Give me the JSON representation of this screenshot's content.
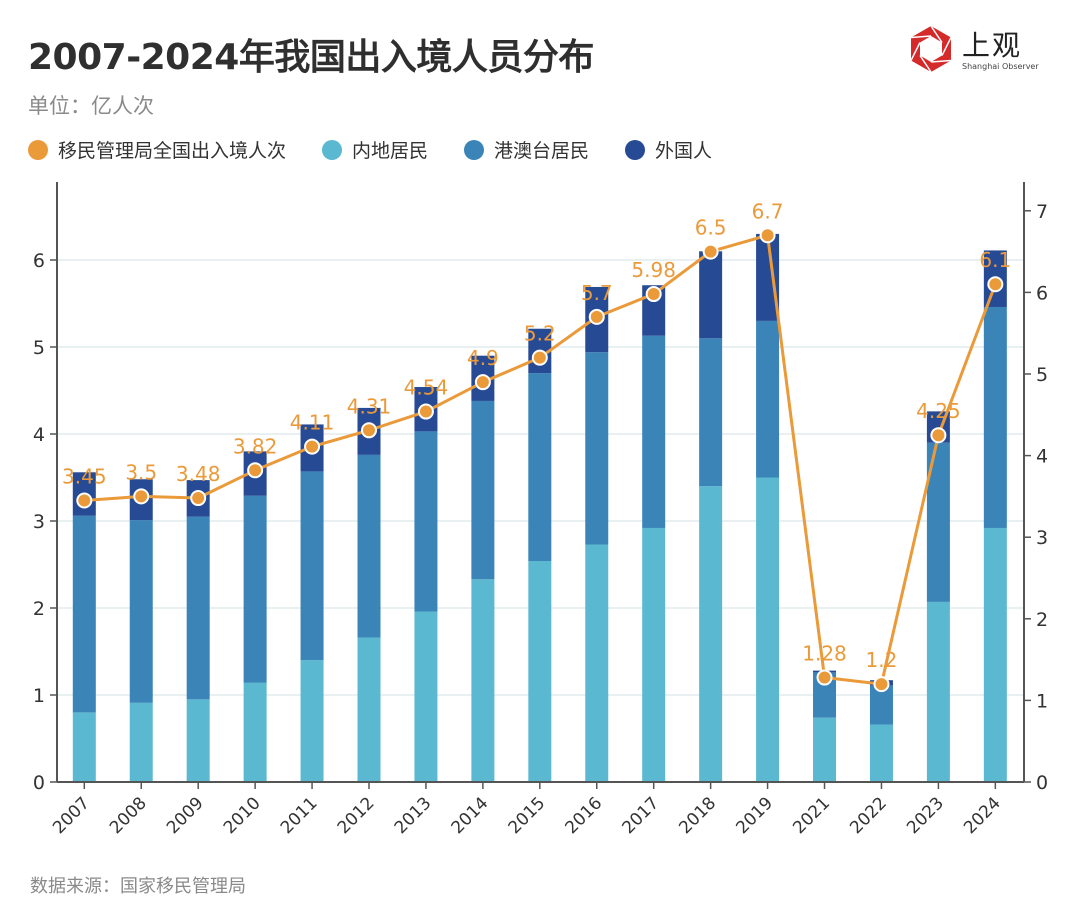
{
  "header": {
    "title": "2007-2024年我国出入境人员分布",
    "unit": "单位：亿人次",
    "logo_text": "上观",
    "logo_subtitle": "Shanghai Observer"
  },
  "legend": [
    {
      "label": "移民管理局全国出入境人次",
      "color": "#EB9A3A"
    },
    {
      "label": "内地居民",
      "color": "#5BB8D1"
    },
    {
      "label": "港澳台居民",
      "color": "#3A84B8"
    },
    {
      "label": "外国人",
      "color": "#274A95"
    }
  ],
  "footer": {
    "source": "数据来源：国家移民管理局"
  },
  "chart_data": {
    "type": "bar",
    "subtype": "stacked bar with line overlay (dual axis)",
    "title": "2007-2024年我国出入境人员分布",
    "ylabel": "亿人次",
    "categories": [
      "2007",
      "2008",
      "2009",
      "2010",
      "2011",
      "2012",
      "2013",
      "2014",
      "2015",
      "2016",
      "2017",
      "2018",
      "2019",
      "2021",
      "2022",
      "2023",
      "2024"
    ],
    "series": [
      {
        "name": "内地居民",
        "type": "bar",
        "axis": "left",
        "color": "#5BB8D1",
        "values": [
          0.8,
          0.91,
          0.95,
          1.14,
          1.4,
          1.66,
          1.96,
          2.33,
          2.54,
          2.73,
          2.92,
          3.4,
          3.5,
          0.74,
          0.66,
          2.07,
          2.92
        ]
      },
      {
        "name": "港澳台居民",
        "type": "bar",
        "axis": "left",
        "color": "#3A84B8",
        "values": [
          2.26,
          2.1,
          2.1,
          2.15,
          2.17,
          2.1,
          2.07,
          2.05,
          2.16,
          2.21,
          2.21,
          1.7,
          1.8,
          0.52,
          0.45,
          1.83,
          2.54
        ]
      },
      {
        "name": "外国人",
        "type": "bar",
        "axis": "left",
        "color": "#274A95",
        "values": [
          0.5,
          0.47,
          0.42,
          0.51,
          0.54,
          0.54,
          0.51,
          0.52,
          0.51,
          0.75,
          0.58,
          1.0,
          1.0,
          0.02,
          0.06,
          0.36,
          0.65
        ]
      },
      {
        "name": "移民管理局全国出入境人次",
        "type": "line",
        "axis": "right",
        "color": "#EB9A3A",
        "values": [
          3.45,
          3.5,
          3.48,
          3.82,
          4.11,
          4.31,
          4.54,
          4.9,
          5.2,
          5.7,
          5.98,
          6.5,
          6.7,
          1.28,
          1.2,
          4.25,
          6.1
        ],
        "labels": [
          "3.45",
          "3.5",
          "3.48",
          "3.82",
          "4.11",
          "4.31",
          "4.54",
          "4.9",
          "5.2",
          "5.7",
          "5.98",
          "6.5",
          "6.7",
          "1.28",
          "1.2",
          "4.25",
          "6.1"
        ]
      }
    ],
    "y_left": {
      "ticks": [
        0,
        1,
        2,
        3,
        4,
        5,
        6
      ],
      "ylim": [
        0,
        6.9
      ]
    },
    "y_right": {
      "ticks": [
        0,
        1,
        2,
        3,
        4,
        5,
        6,
        7
      ],
      "ylim": [
        0,
        7.35
      ]
    },
    "grid": true,
    "legend_position": "top-left"
  }
}
